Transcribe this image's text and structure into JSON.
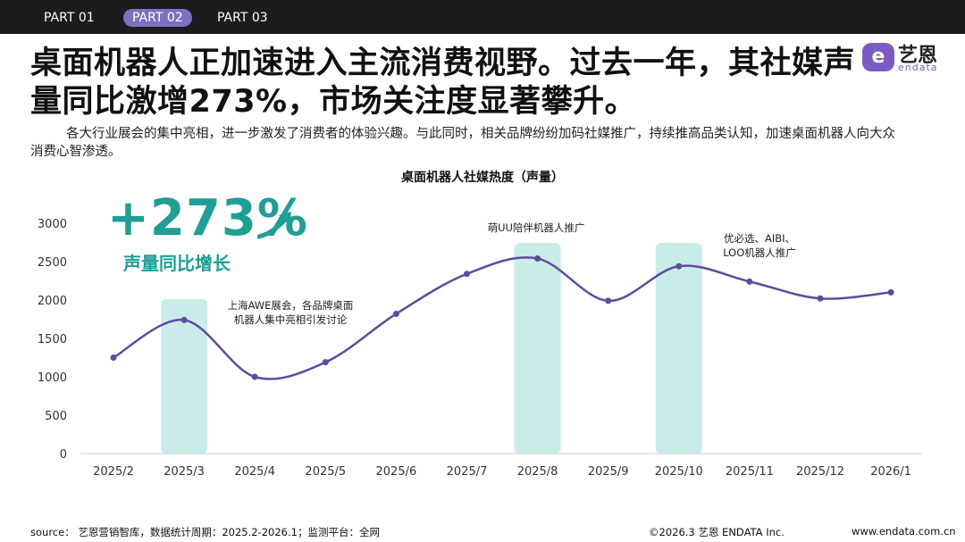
{
  "nav": {
    "tabs": [
      "PART 01",
      "PART 02",
      "PART 03"
    ],
    "active_index": 1
  },
  "headline": "桌面机器人正加速进入主流消费视野。过去一年，其社媒声量同比激增273%，市场关注度显著攀升。",
  "intro": "各大行业展会的集中亮相，进一步激发了消费者的体验兴趣。与此同时，相关品牌纷纷加码社媒推广，持续推高品类认知，加速桌面机器人向大众消费心智渗透。",
  "logo": {
    "cn": "艺恩",
    "en": "endata",
    "mark": "e"
  },
  "kpi": {
    "value": "+273%",
    "label": "声量同比增长"
  },
  "annotations": [
    {
      "text": "上海AWE展会，各品牌桌面机器人集中亮相引发讨论"
    },
    {
      "text": "萌UU陪伴机器人推广"
    },
    {
      "text": "优必选、AIBI、LOO机器人推广"
    }
  ],
  "footer": {
    "source": "source： 艺恩营销智库，数据统计周期：2025.2-2026.1；监测平台：全网",
    "copyright": "©2026.3  艺恩 ENDATA Inc.",
    "website": "www.endata.com.cn"
  },
  "colors": {
    "line": "#5e4c9e",
    "highlight": "#c9ece8",
    "kpi": "#1f9e94",
    "nav_active": "#7f6fbf"
  },
  "chart_data": {
    "type": "line",
    "title": "桌面机器人社媒热度（声量）",
    "categories": [
      "2025/2",
      "2025/3",
      "2025/4",
      "2025/5",
      "2025/6",
      "2025/7",
      "2025/8",
      "2025/9",
      "2025/10",
      "2025/11",
      "2025/12",
      "2026/1"
    ],
    "values": [
      1250,
      1740,
      1000,
      1190,
      1820,
      2340,
      2540,
      1990,
      2440,
      2240,
      2020,
      2100
    ],
    "ylim": [
      0,
      3000
    ],
    "yticks": [
      0,
      500,
      1000,
      1500,
      2000,
      2500,
      3000
    ],
    "highlighted_categories": [
      "2025/3",
      "2025/8",
      "2025/10"
    ],
    "grid": false,
    "smooth": true
  }
}
